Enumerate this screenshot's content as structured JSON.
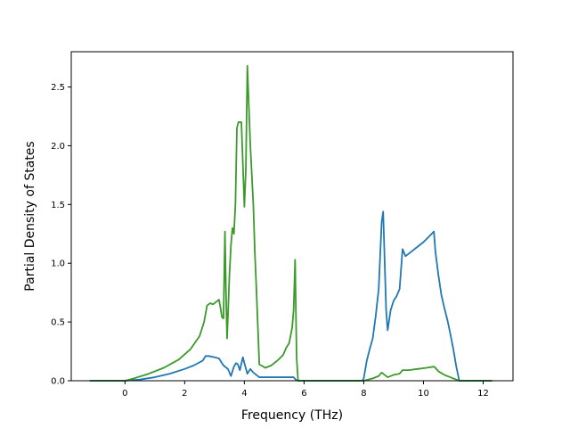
{
  "chart_data": {
    "type": "line",
    "xlabel": "Frequency (THz)",
    "ylabel": "Partial Density of States",
    "xlim": [
      -1.8,
      13.0
    ],
    "ylim": [
      0.0,
      2.8
    ],
    "xticks": [
      0,
      2,
      4,
      6,
      8,
      10,
      12
    ],
    "xtick_labels": [
      "0",
      "2",
      "4",
      "6",
      "8",
      "10",
      "12"
    ],
    "yticks": [
      0.0,
      0.5,
      1.0,
      1.5,
      2.0,
      2.5
    ],
    "ytick_labels": [
      "0.0",
      "0.5",
      "1.0",
      "1.5",
      "2.0",
      "2.5"
    ],
    "grid": false,
    "series": [
      {
        "color": "#1f77b4",
        "x": [
          -1.18,
          0.0,
          0.5,
          1.0,
          1.5,
          2.0,
          2.3,
          2.6,
          2.7,
          2.8,
          3.0,
          3.15,
          3.3,
          3.45,
          3.55,
          3.65,
          3.72,
          3.78,
          3.85,
          3.95,
          4.0,
          4.1,
          4.2,
          4.3,
          4.5,
          5.0,
          5.4,
          5.65,
          5.72,
          5.8,
          6.0,
          7.0,
          7.95,
          8.0,
          8.1,
          8.2,
          8.3,
          8.4,
          8.5,
          8.6,
          8.65,
          8.75,
          8.8,
          8.9,
          9.0,
          9.1,
          9.2,
          9.3,
          9.4,
          9.6,
          9.8,
          10.0,
          10.2,
          10.35,
          10.4,
          10.5,
          10.6,
          10.7,
          10.8,
          10.9,
          11.0,
          11.1,
          11.15,
          11.2,
          12.3
        ],
        "y": [
          0.0,
          0.0,
          0.01,
          0.03,
          0.06,
          0.1,
          0.13,
          0.17,
          0.21,
          0.21,
          0.2,
          0.19,
          0.13,
          0.1,
          0.04,
          0.12,
          0.15,
          0.14,
          0.09,
          0.2,
          0.15,
          0.06,
          0.1,
          0.07,
          0.03,
          0.03,
          0.03,
          0.03,
          0.01,
          0.0,
          0.0,
          0.0,
          0.0,
          0.02,
          0.17,
          0.27,
          0.36,
          0.55,
          0.78,
          1.35,
          1.44,
          0.6,
          0.43,
          0.6,
          0.68,
          0.72,
          0.78,
          1.12,
          1.06,
          1.1,
          1.14,
          1.18,
          1.23,
          1.27,
          1.1,
          0.9,
          0.73,
          0.62,
          0.52,
          0.4,
          0.27,
          0.12,
          0.06,
          0.0,
          0.0
        ]
      },
      {
        "color": "#3a9a2a",
        "x": [
          -1.18,
          0.0,
          0.3,
          0.8,
          1.3,
          1.8,
          2.2,
          2.5,
          2.65,
          2.75,
          2.85,
          2.95,
          3.0,
          3.05,
          3.1,
          3.15,
          3.2,
          3.25,
          3.3,
          3.35,
          3.38,
          3.42,
          3.45,
          3.5,
          3.55,
          3.6,
          3.65,
          3.7,
          3.75,
          3.8,
          3.9,
          4.0,
          4.05,
          4.1,
          4.2,
          4.3,
          4.35,
          4.4,
          4.5,
          4.7,
          4.9,
          5.1,
          5.3,
          5.4,
          5.5,
          5.6,
          5.65,
          5.7,
          5.75,
          5.8,
          6.0,
          7.0,
          8.0,
          8.3,
          8.5,
          8.6,
          8.7,
          8.8,
          9.0,
          9.2,
          9.3,
          9.5,
          9.8,
          10.1,
          10.35,
          10.4,
          10.5,
          10.7,
          10.9,
          11.1,
          11.2,
          12.3
        ],
        "y": [
          0.0,
          0.0,
          0.02,
          0.06,
          0.11,
          0.18,
          0.27,
          0.38,
          0.5,
          0.64,
          0.66,
          0.65,
          0.66,
          0.67,
          0.68,
          0.69,
          0.62,
          0.54,
          0.53,
          1.27,
          0.8,
          0.36,
          0.55,
          0.9,
          1.15,
          1.3,
          1.25,
          1.5,
          2.15,
          2.2,
          2.2,
          1.48,
          1.8,
          2.68,
          2.0,
          1.5,
          1.1,
          0.8,
          0.14,
          0.11,
          0.13,
          0.17,
          0.22,
          0.28,
          0.32,
          0.45,
          0.6,
          1.03,
          0.2,
          0.0,
          0.0,
          0.0,
          0.0,
          0.02,
          0.04,
          0.07,
          0.05,
          0.03,
          0.05,
          0.06,
          0.09,
          0.09,
          0.1,
          0.11,
          0.12,
          0.11,
          0.08,
          0.05,
          0.03,
          0.01,
          0.0,
          0.0
        ]
      }
    ]
  }
}
